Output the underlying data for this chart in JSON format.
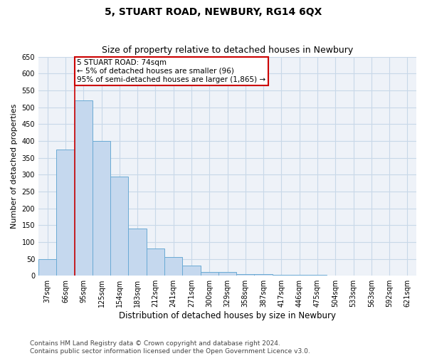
{
  "title": "5, STUART ROAD, NEWBURY, RG14 6QX",
  "subtitle": "Size of property relative to detached houses in Newbury",
  "xlabel": "Distribution of detached houses by size in Newbury",
  "ylabel": "Number of detached properties",
  "categories": [
    "37sqm",
    "66sqm",
    "95sqm",
    "125sqm",
    "154sqm",
    "183sqm",
    "212sqm",
    "241sqm",
    "271sqm",
    "300sqm",
    "329sqm",
    "358sqm",
    "387sqm",
    "417sqm",
    "446sqm",
    "475sqm",
    "504sqm",
    "533sqm",
    "563sqm",
    "592sqm",
    "621sqm"
  ],
  "values": [
    50,
    375,
    520,
    400,
    295,
    140,
    80,
    55,
    30,
    10,
    10,
    5,
    5,
    2,
    2,
    2,
    1,
    1,
    1,
    0,
    0
  ],
  "bar_color": "#c5d8ee",
  "bar_edge_color": "#6aaad4",
  "annotation_text": "5 STUART ROAD: 74sqm\n← 5% of detached houses are smaller (96)\n95% of semi-detached houses are larger (1,865) →",
  "annotation_box_facecolor": "#ffffff",
  "annotation_box_edgecolor": "#cc0000",
  "red_line_color": "#cc0000",
  "grid_color": "#c8d8e8",
  "background_color": "#eef2f8",
  "ylim": [
    0,
    650
  ],
  "yticks": [
    0,
    50,
    100,
    150,
    200,
    250,
    300,
    350,
    400,
    450,
    500,
    550,
    600,
    650
  ],
  "footer_line1": "Contains HM Land Registry data © Crown copyright and database right 2024.",
  "footer_line2": "Contains public sector information licensed under the Open Government Licence v3.0.",
  "title_fontsize": 10,
  "subtitle_fontsize": 9,
  "xlabel_fontsize": 8.5,
  "ylabel_fontsize": 8,
  "tick_fontsize": 7,
  "footer_fontsize": 6.5,
  "annot_fontsize": 7.5
}
